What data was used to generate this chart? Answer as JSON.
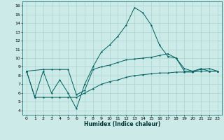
{
  "xlabel": "Humidex (Indice chaleur)",
  "bg_color": "#cceae7",
  "grid_color": "#aad4d0",
  "line_color": "#006060",
  "xlim": [
    -0.5,
    23.5
  ],
  "ylim": [
    3.5,
    16.5
  ],
  "yticks": [
    4,
    5,
    6,
    7,
    8,
    9,
    10,
    11,
    12,
    13,
    14,
    15,
    16
  ],
  "xticks": [
    0,
    1,
    2,
    3,
    4,
    5,
    6,
    7,
    8,
    9,
    10,
    11,
    12,
    13,
    14,
    15,
    16,
    17,
    18,
    19,
    20,
    21,
    22,
    23
  ],
  "line1_x": [
    0,
    1,
    2,
    3,
    4,
    5,
    6,
    7,
    8,
    9,
    10,
    11,
    12,
    13,
    14,
    15,
    16,
    17,
    18,
    19,
    20,
    21,
    22,
    23
  ],
  "line1_y": [
    8.5,
    5.5,
    8.5,
    6.0,
    7.5,
    6.0,
    4.2,
    7.0,
    9.0,
    10.7,
    11.5,
    12.5,
    13.8,
    15.8,
    15.2,
    13.8,
    11.5,
    10.2,
    10.0,
    8.5,
    8.5,
    8.8,
    8.5,
    8.5
  ],
  "line2_x": [
    0,
    2,
    3,
    4,
    5,
    6,
    7,
    8,
    9,
    10,
    11,
    12,
    13,
    14,
    15,
    16,
    17,
    18,
    19,
    20,
    21,
    22,
    23
  ],
  "line2_y": [
    8.5,
    8.7,
    8.7,
    8.7,
    8.7,
    5.8,
    6.3,
    8.7,
    9.0,
    9.2,
    9.5,
    9.8,
    9.9,
    10.0,
    10.1,
    10.3,
    10.5,
    10.0,
    8.8,
    8.5,
    8.7,
    8.8,
    8.5
  ],
  "line3_x": [
    0,
    1,
    2,
    3,
    4,
    5,
    6,
    7,
    8,
    9,
    10,
    11,
    12,
    13,
    14,
    15,
    16,
    17,
    18,
    19,
    20,
    21,
    22,
    23
  ],
  "line3_y": [
    8.5,
    5.5,
    5.5,
    5.5,
    5.5,
    5.5,
    5.5,
    6.0,
    6.5,
    7.0,
    7.3,
    7.5,
    7.8,
    8.0,
    8.1,
    8.2,
    8.3,
    8.3,
    8.4,
    8.4,
    8.4,
    8.5,
    8.5,
    8.5
  ]
}
